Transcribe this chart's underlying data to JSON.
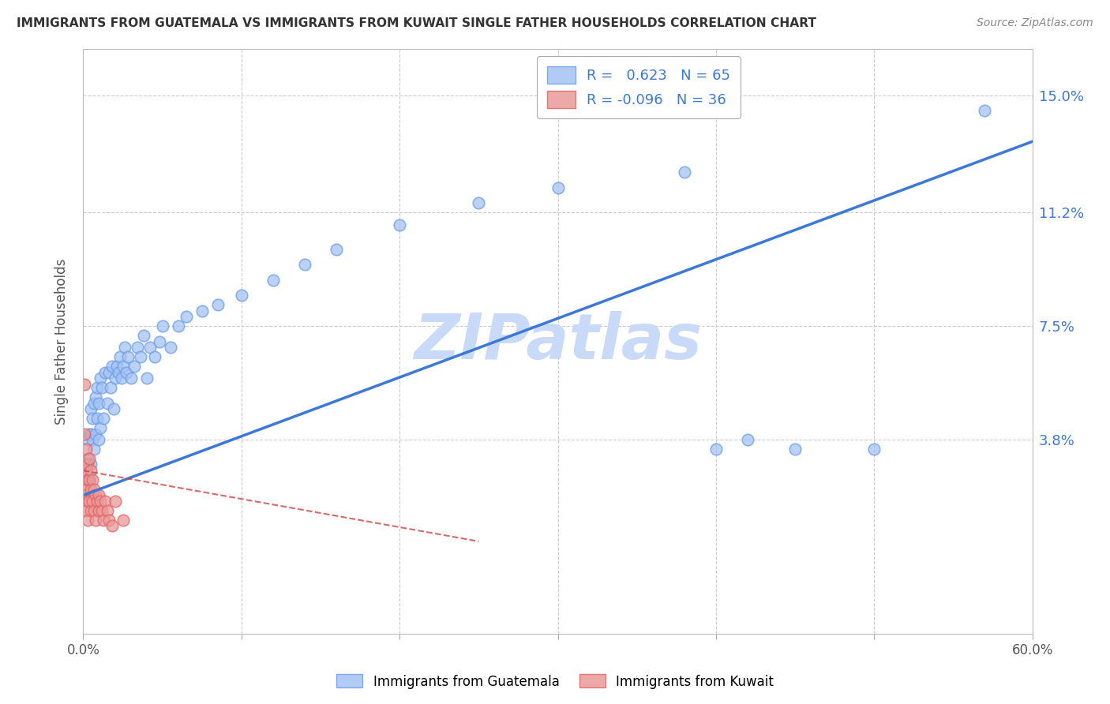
{
  "title": "IMMIGRANTS FROM GUATEMALA VS IMMIGRANTS FROM KUWAIT SINGLE FATHER HOUSEHOLDS CORRELATION CHART",
  "source": "Source: ZipAtlas.com",
  "ylabel": "Single Father Households",
  "xlim": [
    0.0,
    0.6
  ],
  "ylim": [
    -0.025,
    0.165
  ],
  "yticks": [
    0.038,
    0.075,
    0.112,
    0.15
  ],
  "ytick_labels": [
    "3.8%",
    "7.5%",
    "11.2%",
    "15.0%"
  ],
  "xtick_minor": [
    0.0,
    0.1,
    0.2,
    0.3,
    0.4,
    0.5,
    0.6
  ],
  "guatemala_color": "#a4c2f4",
  "guatemala_edge": "#6d9eeb",
  "kuwait_color": "#ea9999",
  "kuwait_edge": "#e06666",
  "trend_blue": "#3c78d8",
  "trend_pink": "#cc4444",
  "R_guatemala": "0.623",
  "N_guatemala": "65",
  "R_kuwait": "-0.096",
  "N_kuwait": "36",
  "watermark": "ZIPatlas",
  "watermark_color": "#c9daf8",
  "legend_label_guatemala": "Immigrants from Guatemala",
  "legend_label_kuwait": "Immigrants from Kuwait",
  "background_color": "#ffffff",
  "grid_color": "#cccccc",
  "title_color": "#333333",
  "source_color": "#888888",
  "ylabel_color": "#555555",
  "right_tick_color": "#3c78d8",
  "tick_text_color": "#555555",
  "guatemala_x": [
    0.002,
    0.003,
    0.003,
    0.004,
    0.004,
    0.005,
    0.005,
    0.005,
    0.006,
    0.006,
    0.007,
    0.007,
    0.008,
    0.008,
    0.009,
    0.009,
    0.01,
    0.01,
    0.011,
    0.011,
    0.012,
    0.013,
    0.014,
    0.015,
    0.016,
    0.017,
    0.018,
    0.019,
    0.02,
    0.021,
    0.022,
    0.023,
    0.024,
    0.025,
    0.026,
    0.027,
    0.028,
    0.03,
    0.032,
    0.034,
    0.036,
    0.038,
    0.04,
    0.042,
    0.045,
    0.048,
    0.05,
    0.055,
    0.06,
    0.065,
    0.075,
    0.085,
    0.1,
    0.12,
    0.14,
    0.16,
    0.2,
    0.25,
    0.3,
    0.38,
    0.4,
    0.42,
    0.45,
    0.5,
    0.57
  ],
  "guatemala_y": [
    0.028,
    0.032,
    0.038,
    0.025,
    0.04,
    0.03,
    0.04,
    0.048,
    0.038,
    0.045,
    0.035,
    0.05,
    0.04,
    0.052,
    0.045,
    0.055,
    0.038,
    0.05,
    0.042,
    0.058,
    0.055,
    0.045,
    0.06,
    0.05,
    0.06,
    0.055,
    0.062,
    0.048,
    0.058,
    0.062,
    0.06,
    0.065,
    0.058,
    0.062,
    0.068,
    0.06,
    0.065,
    0.058,
    0.062,
    0.068,
    0.065,
    0.072,
    0.058,
    0.068,
    0.065,
    0.07,
    0.075,
    0.068,
    0.075,
    0.078,
    0.08,
    0.082,
    0.085,
    0.09,
    0.095,
    0.1,
    0.108,
    0.115,
    0.12,
    0.125,
    0.035,
    0.038,
    0.035,
    0.035,
    0.145
  ],
  "kuwait_x": [
    0.001,
    0.001,
    0.001,
    0.001,
    0.002,
    0.002,
    0.002,
    0.002,
    0.003,
    0.003,
    0.003,
    0.003,
    0.004,
    0.004,
    0.004,
    0.005,
    0.005,
    0.005,
    0.006,
    0.006,
    0.007,
    0.007,
    0.008,
    0.008,
    0.009,
    0.01,
    0.01,
    0.011,
    0.012,
    0.013,
    0.014,
    0.015,
    0.016,
    0.018,
    0.02,
    0.025
  ],
  "kuwait_y": [
    0.056,
    0.04,
    0.03,
    0.02,
    0.035,
    0.028,
    0.022,
    0.015,
    0.03,
    0.025,
    0.018,
    0.012,
    0.032,
    0.025,
    0.018,
    0.028,
    0.022,
    0.015,
    0.025,
    0.018,
    0.022,
    0.015,
    0.02,
    0.012,
    0.018,
    0.02,
    0.015,
    0.018,
    0.015,
    0.012,
    0.018,
    0.015,
    0.012,
    0.01,
    0.018,
    0.012
  ],
  "trend_g_x0": 0.0,
  "trend_g_x1": 0.6,
  "trend_g_y0": 0.02,
  "trend_g_y1": 0.135,
  "trend_k_x0": 0.0,
  "trend_k_x1": 0.25,
  "trend_k_y0": 0.028,
  "trend_k_y1": 0.005
}
